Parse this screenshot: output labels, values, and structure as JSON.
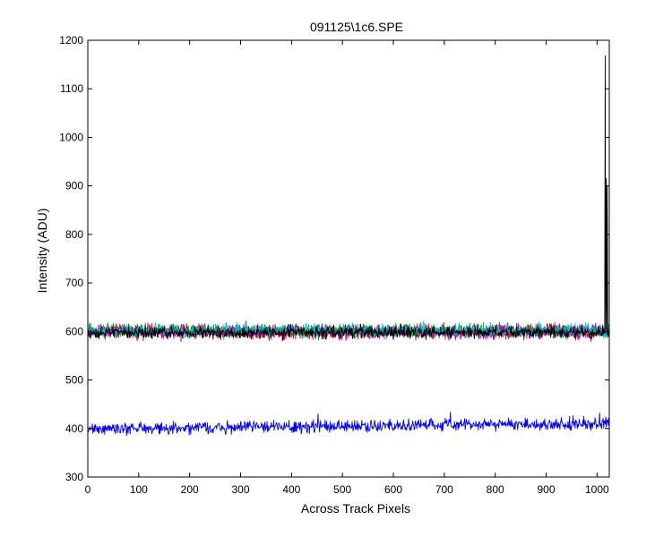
{
  "chart_data": {
    "type": "line",
    "title": "091125\\1c6.SPE",
    "xlabel": "Across Track Pixels",
    "ylabel": "Intensity (ADU)",
    "xlim": [
      0,
      1024
    ],
    "ylim": [
      300,
      1200
    ],
    "grid": false,
    "legend": "none",
    "x_ticks": [
      0,
      100,
      200,
      300,
      400,
      500,
      600,
      700,
      800,
      900,
      1000
    ],
    "y_ticks": [
      300,
      400,
      500,
      600,
      700,
      800,
      900,
      1000,
      1100,
      1200
    ],
    "series": [
      {
        "color": "#ff0000",
        "pixel_range": [
          1,
          1024
        ],
        "mean": 600,
        "noise_amplitude": 16
      },
      {
        "color": "#008000",
        "pixel_range": [
          1,
          1024
        ],
        "mean": 601,
        "noise_amplitude": 16
      },
      {
        "color": "#bf00bf",
        "pixel_range": [
          1,
          1024
        ],
        "mean": 599,
        "noise_amplitude": 16
      },
      {
        "color": "#00bfbf",
        "pixel_range": [
          1,
          1024
        ],
        "mean": 602,
        "noise_amplitude": 16
      },
      {
        "color": "#000000",
        "pixel_range": [
          1,
          1024
        ],
        "mean": 598,
        "noise_amplitude": 14,
        "spikes": [
          {
            "x": 1016,
            "y": 1168
          },
          {
            "x": 1018,
            "y": 915
          },
          {
            "x": 1020,
            "y": 900
          }
        ]
      },
      {
        "color": "#0000ff",
        "pixel_range": [
          1,
          1024
        ],
        "mean_start": 400,
        "mean_end": 410,
        "noise_amplitude": 14,
        "spikes": [
          {
            "x": 712,
            "y": 434
          },
          {
            "x": 452,
            "y": 430
          },
          {
            "x": 1005,
            "y": 432
          }
        ]
      }
    ]
  }
}
